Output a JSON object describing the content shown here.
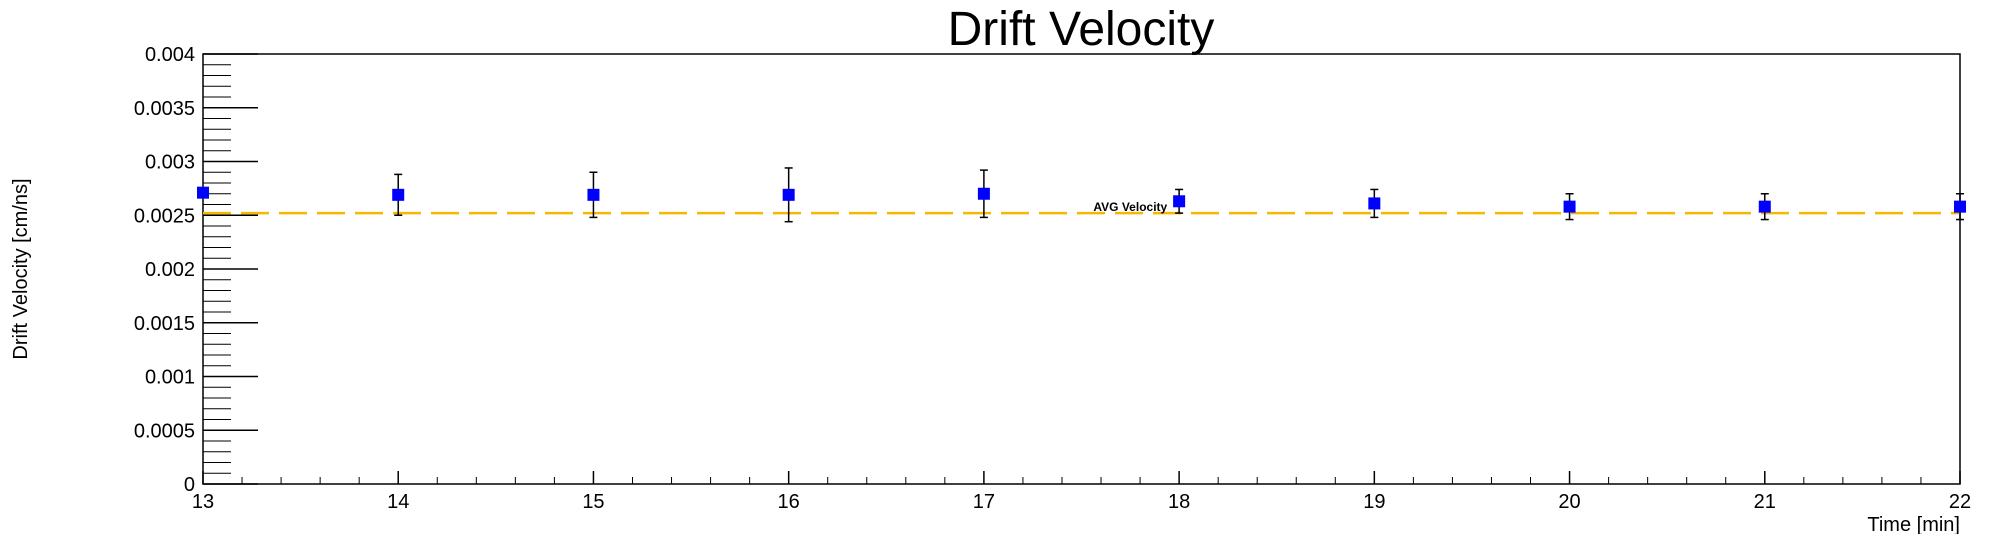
{
  "chart_data": {
    "type": "scatter",
    "title": "Drift Velocity",
    "xlabel": "Time [min]",
    "ylabel": "Drift Velocity [cm/ns]",
    "xlim": [
      13,
      22
    ],
    "ylim": [
      0,
      0.004
    ],
    "x_ticks": [
      13,
      14,
      15,
      16,
      17,
      18,
      19,
      20,
      21,
      22
    ],
    "x_tick_labels": [
      "13",
      "14",
      "15",
      "16",
      "17",
      "18",
      "19",
      "20",
      "21",
      "22"
    ],
    "y_ticks": [
      0,
      0.0005,
      0.001,
      0.0015,
      0.002,
      0.0025,
      0.003,
      0.0035,
      0.004
    ],
    "y_tick_labels": [
      "0",
      "0.0005",
      "0.001",
      "0.0015",
      "0.002",
      "0.0025",
      "0.003",
      "0.0035",
      "0.004"
    ],
    "grid": false,
    "legend": "none",
    "series": [
      {
        "marker": "square",
        "color": "#0000ff",
        "points": [
          {
            "x": 13,
            "y": 0.00271,
            "err": 0.0
          },
          {
            "x": 14,
            "y": 0.00269,
            "err": 0.00019
          },
          {
            "x": 15,
            "y": 0.00269,
            "err": 0.00021
          },
          {
            "x": 16,
            "y": 0.00269,
            "err": 0.00025
          },
          {
            "x": 17,
            "y": 0.0027,
            "err": 0.00022
          },
          {
            "x": 18,
            "y": 0.00263,
            "err": 0.00011
          },
          {
            "x": 19,
            "y": 0.00261,
            "err": 0.00013
          },
          {
            "x": 20,
            "y": 0.00258,
            "err": 0.00012
          },
          {
            "x": 21,
            "y": 0.00258,
            "err": 0.00012
          },
          {
            "x": 22,
            "y": 0.00258,
            "err": 0.00012
          }
        ]
      }
    ],
    "reference_line": {
      "label": "AVG Velocity",
      "y": 0.00252,
      "style": "dashed",
      "color": "#f5b800",
      "label_x": 17.75
    }
  }
}
